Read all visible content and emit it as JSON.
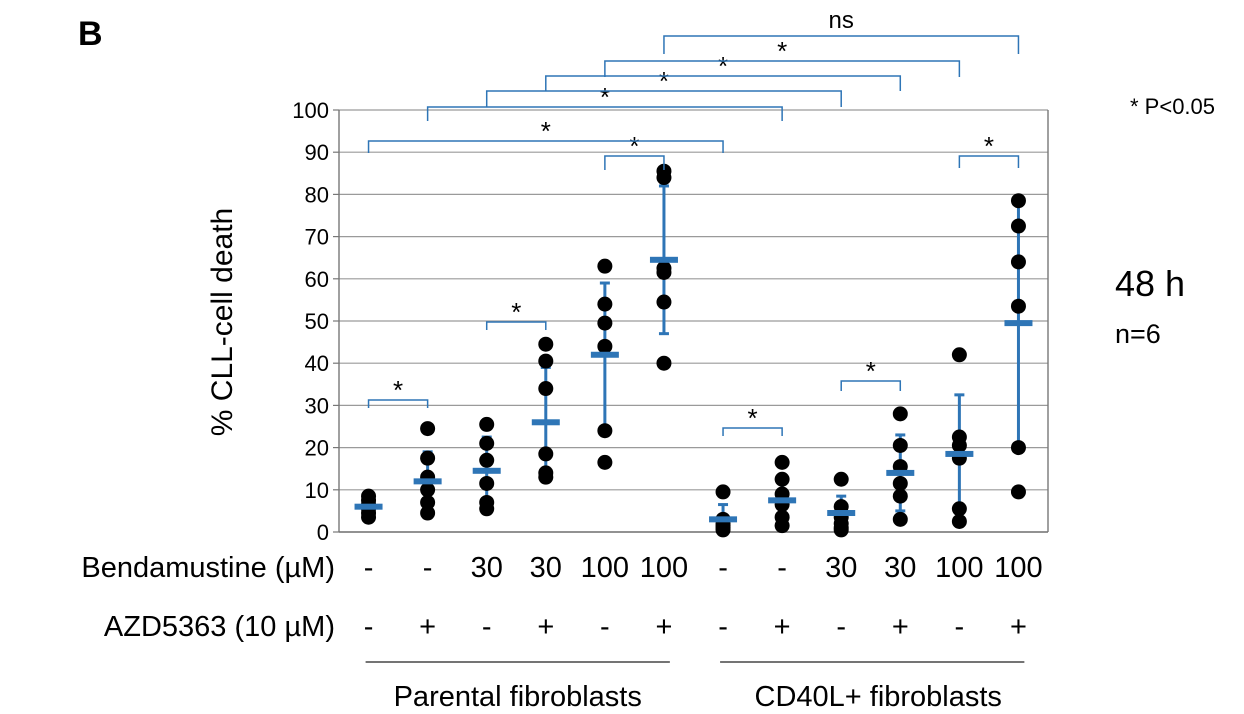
{
  "figure": {
    "panel_label": "B",
    "significance_note": "* P<0.05",
    "time_label": "48 h",
    "n_label": "n=6"
  },
  "chart_data": {
    "type": "scatter",
    "ylabel": "% CLL-cell death",
    "ylim": [
      0,
      100
    ],
    "yticks": [
      0,
      10,
      20,
      30,
      40,
      50,
      60,
      70,
      80,
      90,
      100
    ],
    "grid": true,
    "rows": [
      {
        "label": "Bendamustine (µM)",
        "values": [
          "-",
          "-",
          "30",
          "30",
          "100",
          "100",
          "-",
          "-",
          "30",
          "30",
          "100",
          "100"
        ]
      },
      {
        "label": "AZD5363 (10 µM)",
        "values": [
          "-",
          "+",
          "-",
          "+",
          "-",
          "+",
          "-",
          "+",
          "-",
          "+",
          "-",
          "+"
        ]
      }
    ],
    "groups": [
      {
        "label": "Parental fibroblasts",
        "from": 0,
        "to": 5
      },
      {
        "label": "CD40L+ fibroblasts",
        "from": 6,
        "to": 11
      }
    ],
    "conditions": [
      {
        "points": [
          3.5,
          4.5,
          5.5,
          6.5,
          7.5,
          8.5
        ],
        "mean": 6,
        "sd": 1.5
      },
      {
        "points": [
          4.5,
          7,
          10,
          13,
          17.5,
          24.5
        ],
        "mean": 12,
        "sd": 7
      },
      {
        "points": [
          5.5,
          7,
          11.5,
          17,
          21,
          25.5
        ],
        "mean": 14.5,
        "sd": 8
      },
      {
        "points": [
          13,
          14,
          18.5,
          34,
          40.5,
          44.5
        ],
        "mean": 26,
        "sd": 13
      },
      {
        "points": [
          16.5,
          24,
          44,
          49.5,
          54,
          63
        ],
        "mean": 42,
        "sd": 17
      },
      {
        "points": [
          40,
          54.5,
          61.5,
          62.5,
          84,
          85.5
        ],
        "mean": 64.5,
        "sd": 17.5
      },
      {
        "points": [
          0.5,
          1,
          1.5,
          2,
          3,
          9.5
        ],
        "mean": 3,
        "sd": 3.5
      },
      {
        "points": [
          1.5,
          3.5,
          6.5,
          9,
          12.5,
          16.5
        ],
        "mean": 7.5,
        "sd": 5.5
      },
      {
        "points": [
          0.5,
          1,
          2,
          3.5,
          6,
          12.5
        ],
        "mean": 4.5,
        "sd": 4
      },
      {
        "points": [
          3,
          8.5,
          11.5,
          15.5,
          20.5,
          28
        ],
        "mean": 14,
        "sd": 9
      },
      {
        "points": [
          2.5,
          5.5,
          17.5,
          20.5,
          22.5,
          42
        ],
        "mean": 18.5,
        "sd": 14
      },
      {
        "points": [
          9.5,
          20,
          53.5,
          64,
          72.5,
          78.5
        ],
        "mean": 49.5,
        "sd": 28.5
      }
    ],
    "comparisons": [
      {
        "from": 0,
        "to": 1,
        "label": "*"
      },
      {
        "from": 2,
        "to": 3,
        "label": "*"
      },
      {
        "from": 4,
        "to": 5,
        "label": "*"
      },
      {
        "from": 0,
        "to": 6,
        "label": "*"
      },
      {
        "from": 1,
        "to": 7,
        "label": "*"
      },
      {
        "from": 2,
        "to": 8,
        "label": "*"
      },
      {
        "from": 3,
        "to": 9,
        "label": "*"
      },
      {
        "from": 4,
        "to": 10,
        "label": "*"
      },
      {
        "from": 5,
        "to": 11,
        "label": "ns"
      },
      {
        "from": 6,
        "to": 7,
        "label": "*"
      },
      {
        "from": 8,
        "to": 9,
        "label": "*"
      },
      {
        "from": 10,
        "to": 11,
        "label": "*"
      }
    ],
    "colors": {
      "mean_bar": "#2e75b6",
      "bracket": "#2e75b6",
      "point": "#000000",
      "grid": "#9a9a9a"
    }
  }
}
